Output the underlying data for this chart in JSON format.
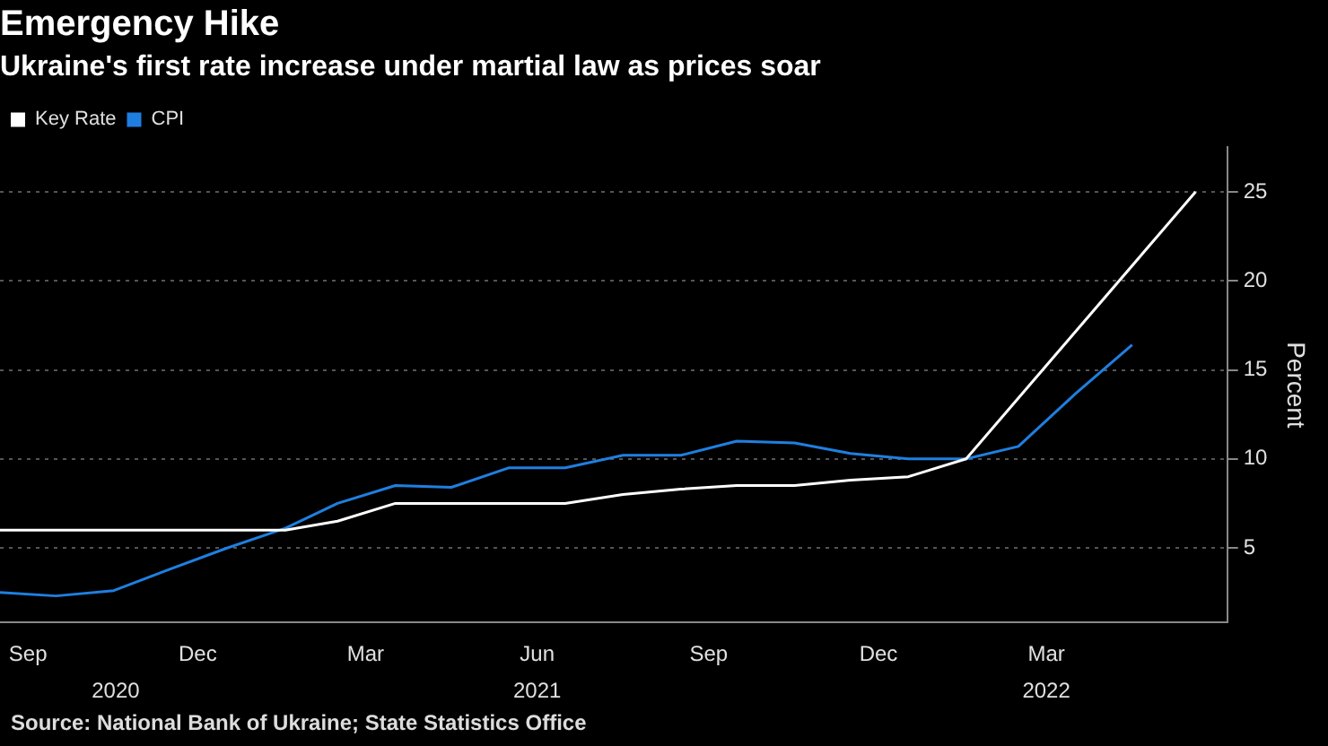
{
  "chart_data": {
    "type": "line",
    "title": "Emergency Hike",
    "subtitle": "Ukraine's first rate increase under martial law as prices soar",
    "ylabel": "Percent",
    "series": [
      {
        "name": "Key Rate",
        "color": "#ffffff",
        "x": [
          "2020-08-31",
          "2021-01-31",
          "2021-02-28",
          "2021-03-31",
          "2021-04-30",
          "2021-06-30",
          "2021-07-31",
          "2021-08-31",
          "2021-09-30",
          "2021-10-31",
          "2021-11-30",
          "2021-12-31",
          "2022-01-31",
          "2022-06-03"
        ],
        "values": [
          6,
          6,
          6.5,
          7.5,
          7.5,
          7.5,
          8,
          8.3,
          8.5,
          8.5,
          8.8,
          9,
          10,
          25
        ]
      },
      {
        "name": "CPI",
        "color": "#1f7fe0",
        "x": [
          "2020-08-31",
          "2020-09-30",
          "2020-10-31",
          "2020-11-30",
          "2020-12-31",
          "2021-01-31",
          "2021-02-28",
          "2021-03-31",
          "2021-04-30",
          "2021-05-31",
          "2021-06-30",
          "2021-07-31",
          "2021-08-31",
          "2021-09-30",
          "2021-10-31",
          "2021-11-30",
          "2021-12-31",
          "2022-01-31",
          "2022-02-28",
          "2022-03-31",
          "2022-04-30"
        ],
        "values": [
          2.5,
          2.3,
          2.6,
          3.8,
          5.0,
          6.1,
          7.5,
          8.5,
          8.4,
          9.5,
          9.5,
          10.2,
          10.2,
          11.0,
          10.9,
          10.3,
          10.0,
          10.0,
          10.7,
          13.7,
          16.4
        ]
      }
    ],
    "xlim": [
      "2020-08-31",
      "2022-06-20"
    ],
    "xticks": [
      {
        "value": "2020-09-15",
        "label": "Sep"
      },
      {
        "value": "2020-12-15",
        "label": "Dec"
      },
      {
        "value": "2021-03-15",
        "label": "Mar"
      },
      {
        "value": "2021-06-15",
        "label": "Jun"
      },
      {
        "value": "2021-09-15",
        "label": "Sep"
      },
      {
        "value": "2021-12-15",
        "label": "Dec"
      },
      {
        "value": "2022-03-15",
        "label": "Mar"
      }
    ],
    "x2lim": [
      "2020-08-31",
      "2022-06-20"
    ],
    "x2ticks": [
      {
        "value": "2020-11-01",
        "label": "2020"
      },
      {
        "value": "2021-06-15",
        "label": "2021"
      },
      {
        "value": "2022-03-15",
        "label": "2022"
      }
    ],
    "ylim": [
      0.8,
      27.5
    ],
    "yticks": [
      5,
      10,
      15,
      20,
      25
    ],
    "grid": "y",
    "legend": "top left",
    "marker": "none",
    "line_style": "solid",
    "annotations": [
      "Source: National Bank of Ukraine; State Statistics Office"
    ]
  }
}
